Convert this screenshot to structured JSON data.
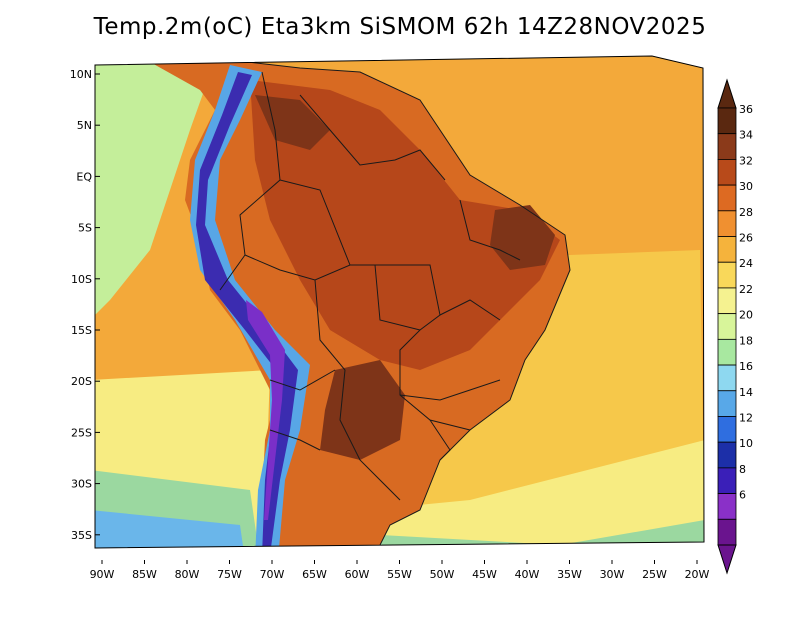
{
  "title": "Temp.2m(oC) Eta3km SiSMOM 62h 14Z28NOV2025",
  "lat_labels": [
    "10N",
    "5N",
    "EQ",
    "5S",
    "10S",
    "15S",
    "20S",
    "25S",
    "30S",
    "35S"
  ],
  "lon_labels": [
    "90W",
    "85W",
    "80W",
    "75W",
    "70W",
    "65W",
    "60W",
    "55W",
    "50W",
    "45W",
    "40W",
    "35W",
    "30W",
    "25W",
    "20W"
  ],
  "colorbar": {
    "labels": [
      "36",
      "34",
      "32",
      "30",
      "28",
      "26",
      "24",
      "22",
      "20",
      "18",
      "16",
      "14",
      "12",
      "10",
      "8",
      "6"
    ],
    "colors": [
      "#5a2810",
      "#8b3a1a",
      "#b84a1a",
      "#dd6a22",
      "#f09030",
      "#f5b33c",
      "#f9d85a",
      "#f5f290",
      "#d8f59a",
      "#a8e8a0",
      "#8ed8f0",
      "#58a8e8",
      "#2f6ee0",
      "#1c2fa8",
      "#3a1fb8",
      "#8a30c8",
      "#6a148e"
    ],
    "top_arrow_color": "#5a2810",
    "bottom_arrow_color": "#6a148e"
  },
  "map_colors": {
    "ocean_warm": "#f3a93a",
    "ocean_mid": "#f6c84a",
    "ocean_cool": "#f7ec82",
    "ocean_cold": "#9bd8a0",
    "ocean_colder": "#6ab6ea",
    "land_hot": "#d86a22",
    "land_hotter": "#b6471a",
    "land_hottest": "#7e3418",
    "andes_cold": "#3b2cb0",
    "andes_cold2": "#7a2fc8",
    "andes_cool": "#58a6e6",
    "pacific_green": "#c4ee9a"
  }
}
